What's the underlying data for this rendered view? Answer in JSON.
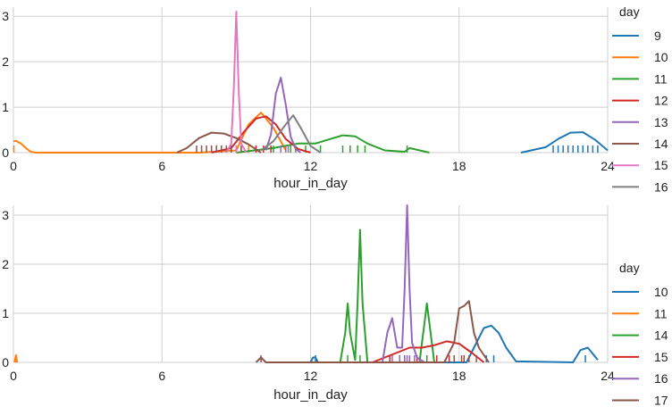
{
  "chart_data": [
    {
      "type": "line",
      "xlabel": "hour_in_day",
      "ylabel": "",
      "xlim": [
        0,
        24
      ],
      "ylim": [
        0,
        3.2
      ],
      "xticks": [
        0,
        6,
        12,
        18,
        24
      ],
      "yticks": [
        0,
        1,
        2,
        3
      ],
      "grid": true,
      "legend_title": "day",
      "legend_position": "right",
      "series": [
        {
          "name": "9",
          "color": "#1f77b4",
          "x": [
            20.5,
            21.5,
            22.0,
            22.5,
            23.0,
            23.5,
            24.0
          ],
          "y": [
            0.0,
            0.12,
            0.3,
            0.44,
            0.45,
            0.28,
            0.05
          ],
          "rug": [
            21.8,
            22.0,
            22.2,
            22.4,
            22.6,
            22.8,
            23.0,
            23.2,
            23.4,
            23.6
          ]
        },
        {
          "name": "10",
          "color": "#ff7f0e",
          "x": [
            0.0,
            0.1,
            0.3,
            0.5,
            0.7,
            0.9,
            7.5,
            9.0,
            9.5,
            10.0,
            10.5,
            11.0
          ],
          "y": [
            0.25,
            0.26,
            0.2,
            0.1,
            0.02,
            0.0,
            0.0,
            0.05,
            0.62,
            0.88,
            0.55,
            0.05
          ],
          "rug": [
            0.02,
            9.2,
            9.5,
            9.8
          ]
        },
        {
          "name": "11",
          "color": "#2ca02c",
          "x": [
            9.0,
            10.5,
            11.5,
            12.2,
            12.8,
            13.3,
            13.8,
            14.3,
            15.0,
            15.8,
            16.0,
            16.8
          ],
          "y": [
            0.0,
            0.1,
            0.2,
            0.2,
            0.3,
            0.38,
            0.36,
            0.2,
            0.05,
            0.02,
            0.1,
            0.0
          ],
          "rug": [
            10.5,
            11.2,
            11.8,
            12.4,
            13.3,
            13.6,
            13.9,
            14.2,
            15.9
          ]
        },
        {
          "name": "12",
          "color": "#d62728",
          "x": [
            8.0,
            8.8,
            9.3,
            9.8,
            10.2,
            10.6,
            11.0,
            11.5,
            12.0
          ],
          "y": [
            0.0,
            0.1,
            0.45,
            0.75,
            0.8,
            0.62,
            0.3,
            0.08,
            0.0
          ],
          "rug": [
            9.8,
            10.1,
            10.4
          ]
        },
        {
          "name": "13",
          "color": "#9467bd",
          "x": [
            10.2,
            10.4,
            10.6,
            10.8,
            11.0,
            11.2,
            11.4,
            11.6
          ],
          "y": [
            0.05,
            0.4,
            1.3,
            1.65,
            1.05,
            0.35,
            0.08,
            0.0
          ],
          "rug": [
            10.8,
            11.0
          ]
        },
        {
          "name": "14",
          "color": "#8c564b",
          "x": [
            6.6,
            7.0,
            7.5,
            8.0,
            8.5,
            9.0,
            9.5,
            10.0
          ],
          "y": [
            0.0,
            0.1,
            0.32,
            0.44,
            0.42,
            0.32,
            0.18,
            0.0
          ],
          "rug": [
            7.4,
            7.6,
            7.8,
            8.0,
            8.2,
            8.4,
            8.6,
            8.8,
            9.0,
            9.2
          ]
        },
        {
          "name": "15",
          "color": "#e377c2",
          "x": [
            8.6,
            8.8,
            8.9,
            9.0,
            9.1,
            9.2,
            9.4
          ],
          "y": [
            0.0,
            0.2,
            1.4,
            3.1,
            1.4,
            0.2,
            0.0
          ],
          "rug": [
            9.0
          ]
        },
        {
          "name": "16",
          "color": "#7f7f7f",
          "x": [
            10.0,
            10.5,
            11.0,
            11.3,
            11.6,
            12.0,
            12.4
          ],
          "y": [
            0.05,
            0.25,
            0.62,
            0.82,
            0.55,
            0.15,
            0.0
          ],
          "rug": [
            11.1,
            11.4
          ]
        }
      ]
    },
    {
      "type": "line",
      "xlabel": "hour_in_day",
      "ylabel": "",
      "xlim": [
        0,
        24
      ],
      "ylim": [
        0,
        3.2
      ],
      "xticks": [
        0,
        6,
        12,
        18,
        24
      ],
      "yticks": [
        0,
        1,
        2,
        3
      ],
      "grid": true,
      "legend_title": "day",
      "legend_position": "right",
      "series": [
        {
          "name": "10",
          "color": "#1f77b4",
          "x": [
            12.0,
            12.1,
            12.2,
            12.3,
            18.3,
            18.6,
            19.0,
            19.3,
            19.6,
            19.9,
            20.3,
            22.6,
            22.9,
            23.2,
            23.6
          ],
          "y": [
            0.0,
            0.1,
            0.1,
            0.0,
            0.0,
            0.3,
            0.7,
            0.75,
            0.6,
            0.3,
            0.02,
            0.0,
            0.25,
            0.3,
            0.05
          ],
          "rug": [
            12.2,
            19.1,
            19.4,
            23.1
          ]
        },
        {
          "name": "11",
          "color": "#ff7f0e",
          "x": [
            0.05,
            0.1,
            0.15
          ],
          "y": [
            0.0,
            0.15,
            0.0
          ],
          "rug": [
            0.1
          ]
        },
        {
          "name": "14",
          "color": "#2ca02c",
          "x": [
            13.2,
            13.4,
            13.5,
            13.6,
            13.8,
            13.9,
            14.0,
            14.1,
            14.3,
            14.6,
            16.4,
            16.6,
            16.7,
            16.8,
            17.0
          ],
          "y": [
            0.0,
            0.6,
            1.2,
            0.6,
            0.05,
            1.2,
            2.7,
            1.2,
            0.0,
            0.0,
            0.0,
            0.8,
            1.2,
            0.8,
            0.0
          ],
          "rug": [
            13.5,
            14.0,
            16.7
          ]
        },
        {
          "name": "15",
          "color": "#d62728",
          "x": [
            14.5,
            15.0,
            15.5,
            16.0,
            16.5,
            17.0,
            17.5,
            18.0,
            18.5,
            19.0
          ],
          "y": [
            0.0,
            0.1,
            0.2,
            0.3,
            0.3,
            0.35,
            0.43,
            0.38,
            0.2,
            0.0
          ],
          "rug": [
            15.2,
            15.8,
            16.3,
            17.1,
            17.6,
            18.2
          ]
        },
        {
          "name": "16",
          "color": "#9467bd",
          "x": [
            14.9,
            15.1,
            15.3,
            15.5,
            15.7,
            15.8,
            15.9,
            16.0,
            16.1,
            16.3,
            16.6
          ],
          "y": [
            0.0,
            0.6,
            0.9,
            0.3,
            0.3,
            1.5,
            3.2,
            1.5,
            0.4,
            0.1,
            0.0
          ],
          "rug": [
            15.3,
            15.6,
            15.8,
            15.9,
            16.0,
            16.2
          ]
        },
        {
          "name": "17",
          "color": "#8c564b",
          "x": [
            9.8,
            10.0,
            10.2,
            17.4,
            17.8,
            18.0,
            18.2,
            18.4,
            18.6,
            18.8,
            19.2
          ],
          "y": [
            0.0,
            0.1,
            0.0,
            0.0,
            0.4,
            1.1,
            1.15,
            1.25,
            0.6,
            0.3,
            0.0
          ],
          "rug": [
            10.0,
            17.8,
            18.1,
            18.4,
            18.7
          ]
        }
      ]
    }
  ]
}
